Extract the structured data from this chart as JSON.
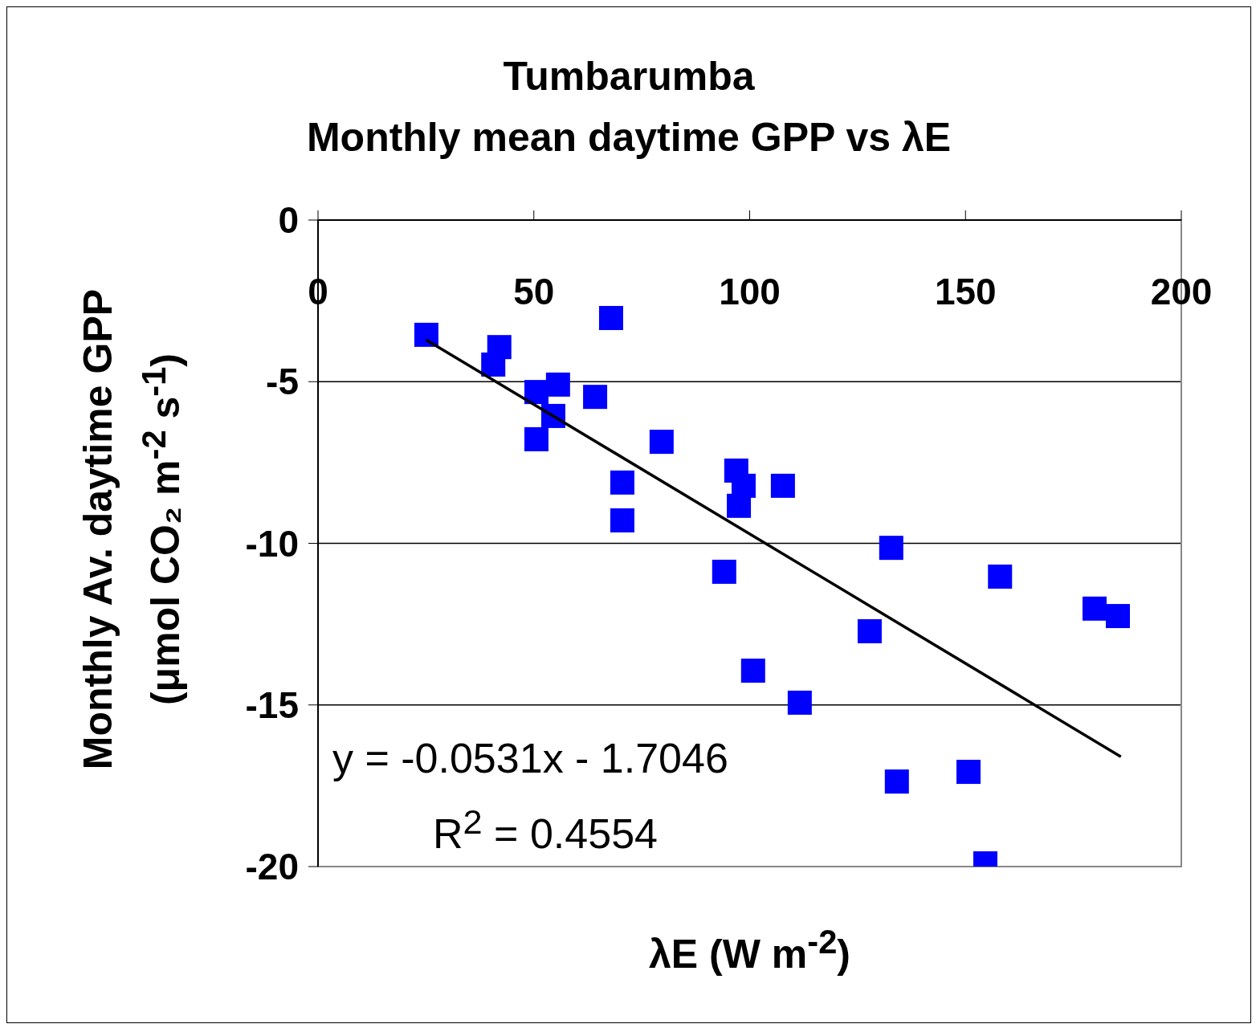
{
  "chart_data": {
    "type": "scatter",
    "title": "Tumbarumba\nMonthly mean daytime  GPP vs λE",
    "xlabel": "λE (W m$^{-2}$)",
    "ylabel": "Monthly Av. daytime GPP\n(μmol CO₂ m$^{-2}$ s$^{-1}$)",
    "xlim": [
      0,
      200
    ],
    "xticks": [
      0,
      50,
      100,
      150,
      200
    ],
    "ylim": [
      -20,
      0
    ],
    "yticks": [
      -20,
      -15,
      -10,
      -5,
      0
    ],
    "grid": "y",
    "marker": "square",
    "annotations": [
      "y = -0.0531x - 1.7046",
      "R$^{2}$ = 0.4554"
    ],
    "series": [
      {
        "color": "#0000ff",
        "x": [
          25.1,
          40.6,
          42.0,
          50.6,
          55.6,
          54.5,
          50.6,
          64.2,
          67.9,
          70.5,
          70.5,
          79.6,
          96.9,
          98.6,
          97.5,
          107.7,
          94.1,
          100.8,
          111.6,
          127.8,
          132.8,
          134.1,
          150.7,
          154.6,
          158.0,
          179.9,
          185.3
        ],
        "values": [
          -3.55,
          -4.47,
          -3.93,
          -5.32,
          -5.09,
          -6.06,
          -6.78,
          -5.47,
          -3.03,
          -8.12,
          -9.29,
          -6.86,
          -7.75,
          -8.22,
          -8.84,
          -8.22,
          -10.88,
          -13.94,
          -14.93,
          -12.72,
          -10.14,
          -17.37,
          -17.07,
          -19.9,
          -11.03,
          -12.02,
          -12.25
        ]
      },
      {
        "type": "line",
        "color": "#000000",
        "marker": "none",
        "line_style": "solid",
        "x": [
          25,
          186
        ],
        "values": [
          -3.7,
          -16.6
        ]
      }
    ]
  }
}
